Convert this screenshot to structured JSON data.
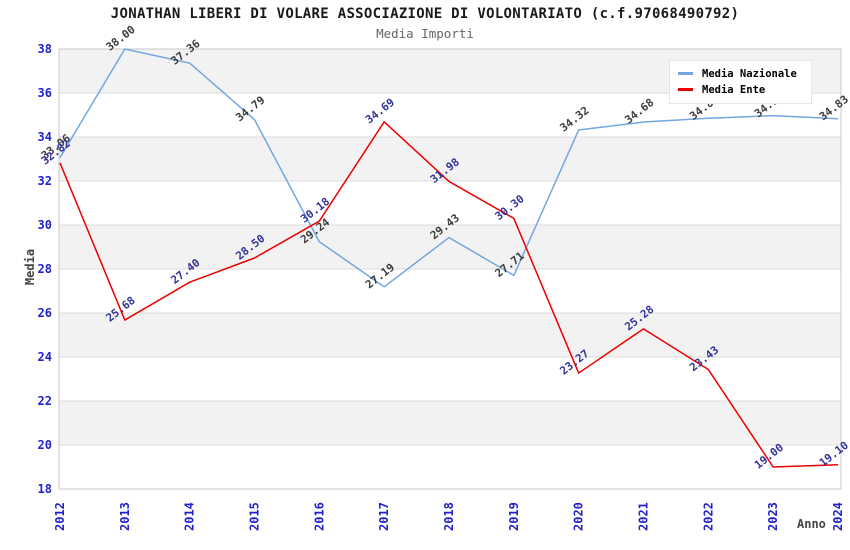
{
  "header": {
    "title": "JONATHAN LIBERI DI VOLARE ASSOCIAZIONE DI VOLONTARIATO (c.f.97068490792)",
    "subtitle": "Media Importi"
  },
  "axes": {
    "y_title": "Media",
    "x_title": "Anno"
  },
  "legend": {
    "position": "top-right",
    "items": [
      {
        "label": "Media Nazionale",
        "color": "#74a7df"
      },
      {
        "label": "Media Ente",
        "color": "#ee0000"
      }
    ]
  },
  "chart_data": {
    "type": "line",
    "title": "JONATHAN LIBERI DI VOLARE ASSOCIAZIONE DI VOLONTARIATO (c.f.97068490792)",
    "subtitle": "Media Importi",
    "xlabel": "Anno",
    "ylabel": "Media",
    "x": [
      "2012",
      "2013",
      "2014",
      "2015",
      "2016",
      "2017",
      "2018",
      "2019",
      "2020",
      "2021",
      "2022",
      "2023",
      "2024"
    ],
    "ylim": [
      18,
      38
    ],
    "y_ticks": [
      18,
      20,
      22,
      24,
      26,
      28,
      30,
      32,
      34,
      36,
      38
    ],
    "grid": true,
    "band_fill_intervals": [
      [
        20,
        22
      ],
      [
        24,
        26
      ],
      [
        28,
        30
      ],
      [
        32,
        34
      ],
      [
        36,
        38
      ]
    ],
    "legend_position": "top-right",
    "series": [
      {
        "name": "Media Nazionale",
        "color": "#74a7df",
        "label_color": "#3c3c3c",
        "values": [
          33.06,
          38.0,
          37.36,
          34.79,
          29.24,
          27.19,
          29.43,
          27.71,
          34.32,
          34.68,
          34.85,
          34.97,
          34.83
        ],
        "labels": [
          "33.06",
          "38.00",
          "37.36",
          "34.79",
          "29.24",
          "27.19",
          "29.43",
          "27.71",
          "34.32",
          "34.68",
          "34.85",
          "34.97",
          "34.83"
        ]
      },
      {
        "name": "Media Ente",
        "color": "#ee0000",
        "label_color": "#333399",
        "values": [
          32.82,
          25.68,
          27.4,
          28.5,
          30.18,
          34.69,
          31.98,
          30.3,
          23.27,
          25.28,
          23.43,
          19.0,
          19.1
        ],
        "labels": [
          "32.82",
          "25.68",
          "27.40",
          "28.50",
          "30.18",
          "34.69",
          "31.98",
          "30.30",
          "23.27",
          "25.28",
          "23.43",
          "19.00",
          "19.10"
        ]
      }
    ],
    "tick_color": "#2222cc",
    "band_color": "#f2f2f2",
    "grid_color": "#dcdcdc",
    "border_color": "#c9c9c9"
  }
}
